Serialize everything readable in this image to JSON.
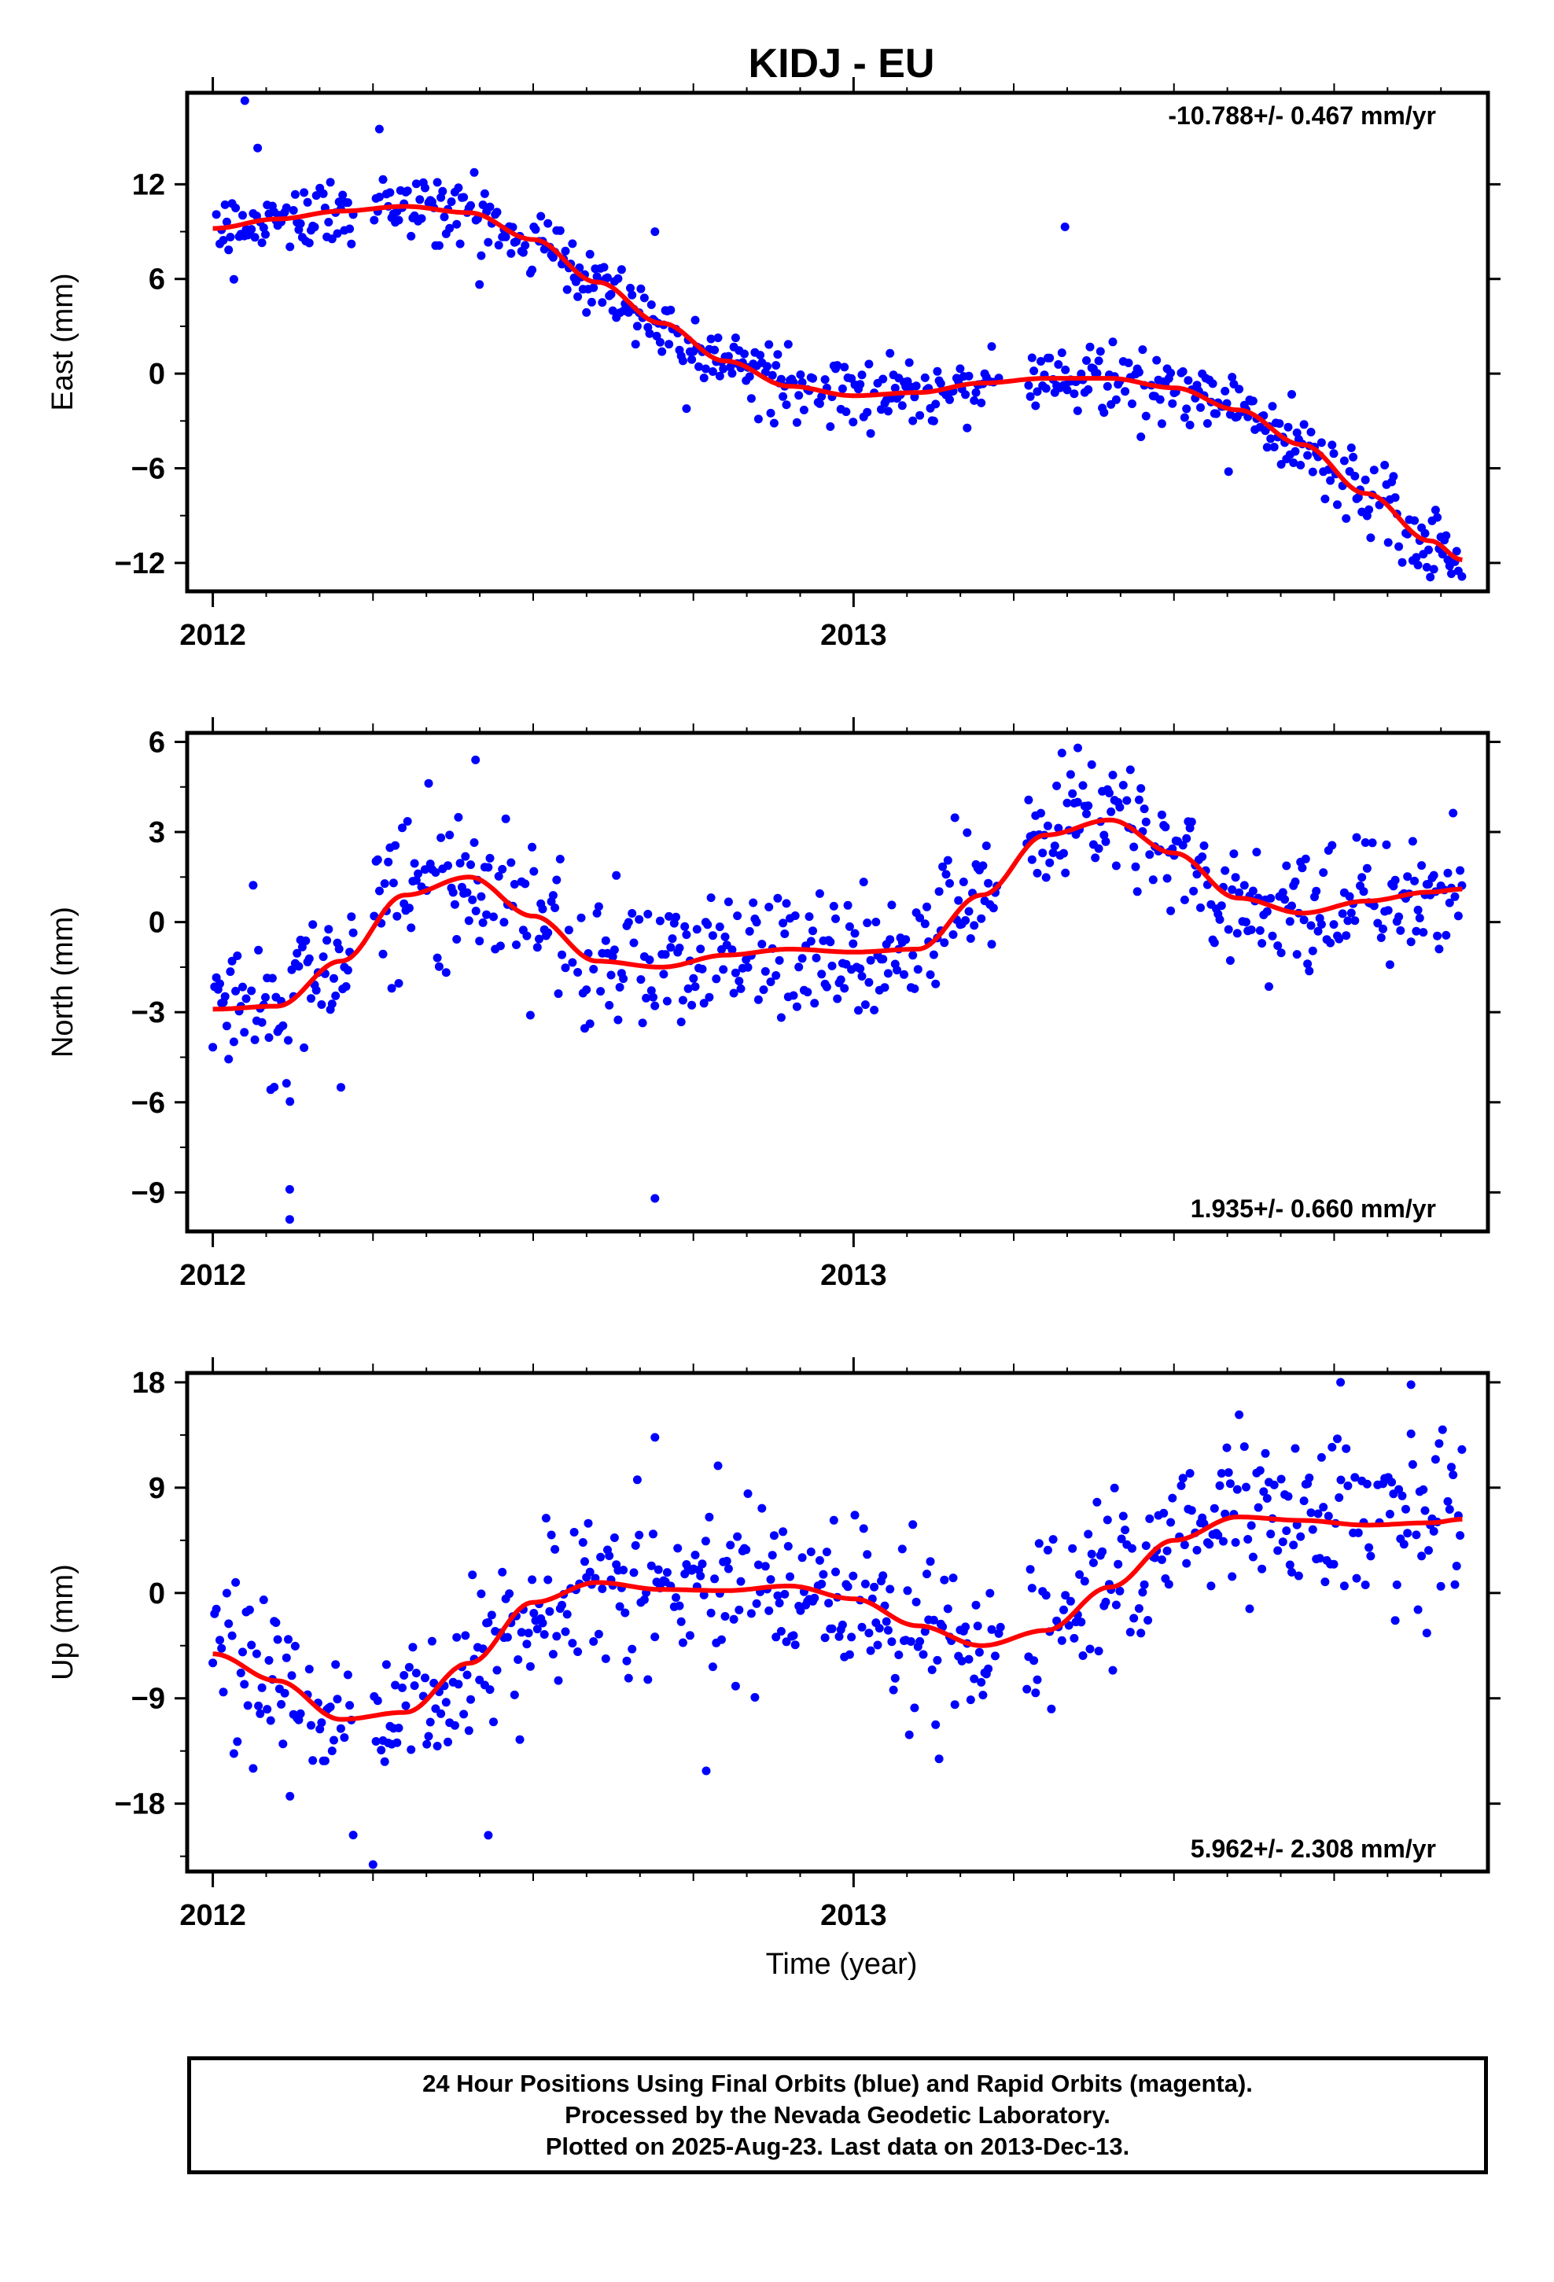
{
  "title": "KIDJ - EU",
  "colors": {
    "points": "#0000ff",
    "fit": "#ff0000",
    "axes": "#000000"
  },
  "xlabel": "Time (year)",
  "caption": [
    "24 Hour Positions Using Final Orbits (blue) and Rapid Orbits (magenta).",
    "Processed by the Nevada Geodetic Laboratory.",
    "Plotted on 2025-Aug-23. Last data on 2013-Dec-13."
  ],
  "chart_data": [
    {
      "type": "scatter",
      "ylabel": "East (mm)",
      "rate_text": "-10.788+/- 0.467 mm/yr",
      "rate_position": "top-right",
      "xlim": [
        2011.96,
        2013.99
      ],
      "ylim": [
        -13.8,
        17.8
      ],
      "yticks": [
        12,
        6,
        0,
        -6,
        -12
      ],
      "ytick_labels": [
        "12",
        "6",
        "0",
        "−6",
        "−12"
      ],
      "xticks": [
        2012,
        2013
      ],
      "xtick_labels": [
        "2012",
        "2013"
      ],
      "fit_curve": {
        "x": [
          2012.0,
          2012.1,
          2012.2,
          2012.3,
          2012.4,
          2012.5,
          2012.6,
          2012.7,
          2012.8,
          2012.9,
          2013.0,
          2013.1,
          2013.2,
          2013.3,
          2013.4,
          2013.5,
          2013.6,
          2013.7,
          2013.8,
          2013.9,
          2013.95
        ],
        "y": [
          9.2,
          9.8,
          10.3,
          10.6,
          10.2,
          8.5,
          5.8,
          3.2,
          0.8,
          -0.8,
          -1.4,
          -1.2,
          -0.6,
          -0.3,
          -0.3,
          -0.9,
          -2.3,
          -4.5,
          -7.6,
          -10.6,
          -11.8
        ]
      },
      "points": {
        "x_range": [
          2012.0,
          2013.95
        ],
        "scatter_sd": 1.1,
        "outliers": [
          [
            2012.05,
            17.3
          ],
          [
            2012.07,
            14.3
          ],
          [
            2012.26,
            15.5
          ],
          [
            2013.33,
            9.3
          ],
          [
            2012.69,
            9.0
          ],
          [
            2013.9,
            -12.9
          ]
        ]
      }
    },
    {
      "type": "scatter",
      "ylabel": "North (mm)",
      "rate_text": "1.935+/- 0.660 mm/yr",
      "rate_position": "bottom-right",
      "xlim": [
        2011.96,
        2013.99
      ],
      "ylim": [
        -10.3,
        6.3
      ],
      "yticks": [
        6,
        3,
        0,
        -3,
        -6,
        -9
      ],
      "ytick_labels": [
        "6",
        "3",
        "0",
        "−3",
        "−6",
        "−9"
      ],
      "xticks": [
        2012,
        2013
      ],
      "xtick_labels": [
        "2012",
        "2013"
      ],
      "fit_curve": {
        "x": [
          2012.0,
          2012.1,
          2012.2,
          2012.3,
          2012.4,
          2012.5,
          2012.6,
          2012.7,
          2012.8,
          2012.9,
          2013.0,
          2013.1,
          2013.2,
          2013.3,
          2013.4,
          2013.5,
          2013.6,
          2013.7,
          2013.8,
          2013.9,
          2013.95
        ],
        "y": [
          -2.9,
          -2.8,
          -1.3,
          0.9,
          1.5,
          0.2,
          -1.3,
          -1.5,
          -1.1,
          -0.9,
          -1.0,
          -0.9,
          0.9,
          2.9,
          3.4,
          2.3,
          0.8,
          0.3,
          0.7,
          1.0,
          1.1
        ]
      },
      "points": {
        "x_range": [
          2012.0,
          2013.95
        ],
        "scatter_sd": 1.15,
        "outliers": [
          [
            2012.12,
            -8.9
          ],
          [
            2012.12,
            -9.9
          ],
          [
            2012.69,
            -9.2
          ],
          [
            2012.41,
            5.4
          ],
          [
            2013.35,
            5.8
          ],
          [
            2012.2,
            -5.5
          ]
        ]
      }
    },
    {
      "type": "scatter",
      "ylabel": "Up (mm)",
      "rate_text": "5.962+/- 2.308 mm/yr",
      "rate_position": "bottom-right",
      "xlim": [
        2011.96,
        2013.99
      ],
      "ylim": [
        -23.8,
        18.8
      ],
      "yticks": [
        18,
        9,
        0,
        -9,
        -18
      ],
      "ytick_labels": [
        "18",
        "9",
        "0",
        "−9",
        "−18"
      ],
      "xticks": [
        2012,
        2013
      ],
      "xtick_labels": [
        "2012",
        "2013"
      ],
      "fit_curve": {
        "x": [
          2012.0,
          2012.1,
          2012.2,
          2012.3,
          2012.4,
          2012.5,
          2012.6,
          2012.7,
          2012.8,
          2012.9,
          2013.0,
          2013.1,
          2013.2,
          2013.3,
          2013.4,
          2013.5,
          2013.6,
          2013.7,
          2013.8,
          2013.9,
          2013.95
        ],
        "y": [
          -5.2,
          -7.5,
          -10.8,
          -10.2,
          -6.0,
          -0.8,
          0.9,
          0.3,
          0.2,
          0.6,
          -0.5,
          -2.8,
          -4.5,
          -3.2,
          0.5,
          4.5,
          6.5,
          6.2,
          5.8,
          6.0,
          6.3
        ]
      },
      "points": {
        "x_range": [
          2012.0,
          2013.95
        ],
        "scatter_sd": 3.6,
        "outliers": [
          [
            2012.25,
            -23.2
          ],
          [
            2012.43,
            -20.7
          ],
          [
            2012.77,
            -15.2
          ],
          [
            2013.76,
            18.0
          ],
          [
            2013.87,
            17.8
          ],
          [
            2012.69,
            13.3
          ]
        ]
      }
    }
  ]
}
